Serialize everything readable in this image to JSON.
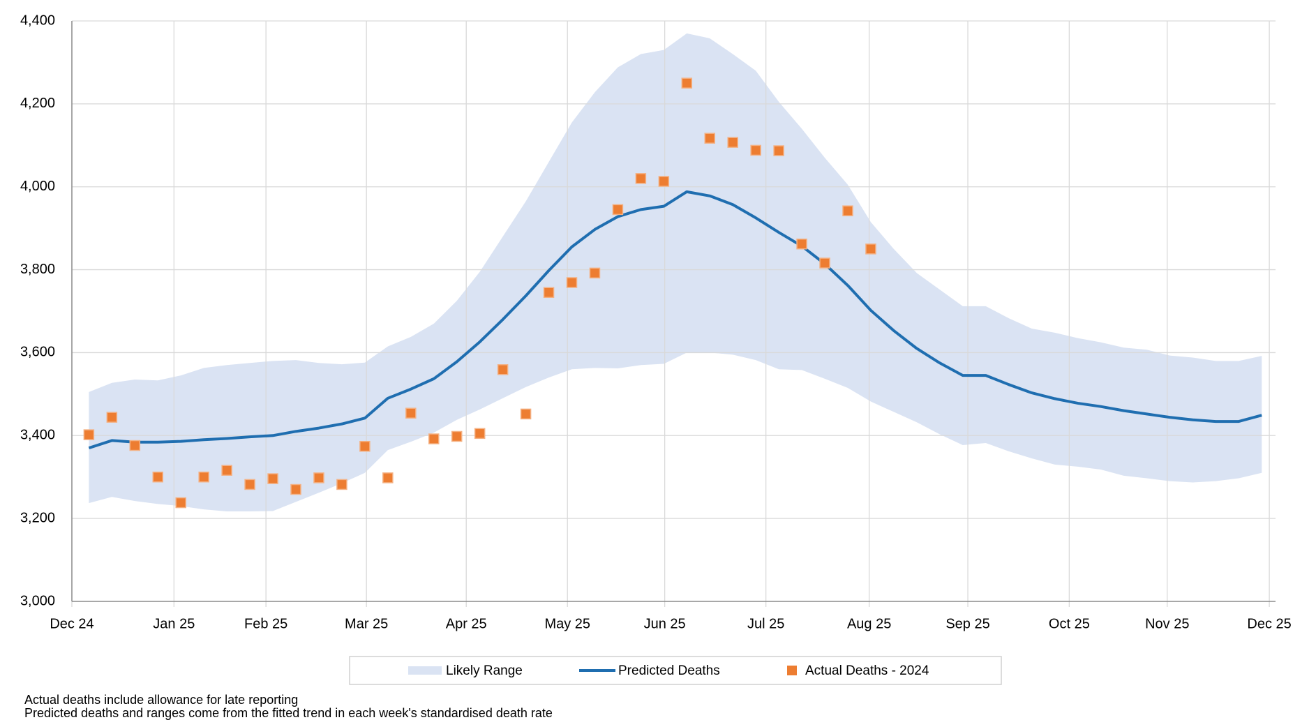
{
  "chart_data": {
    "type": "line",
    "x": [
      1,
      2,
      3,
      4,
      5,
      6,
      7,
      8,
      9,
      10,
      11,
      12,
      13,
      14,
      15,
      16,
      17,
      18,
      19,
      20,
      21,
      22,
      23,
      24,
      25,
      26,
      27,
      28,
      29,
      30,
      31,
      32,
      33,
      34,
      35,
      36,
      37,
      38,
      39,
      40,
      41,
      42,
      43,
      44,
      45,
      46,
      47,
      48,
      49,
      50,
      51,
      52
    ],
    "xlim": [
      0.26,
      52.6
    ],
    "xticks": [
      {
        "value": 0.26,
        "label": "Dec 24"
      },
      {
        "value": 4.7,
        "label": "Jan 25"
      },
      {
        "value": 8.7,
        "label": "Feb 25"
      },
      {
        "value": 13.07,
        "label": "Mar 25"
      },
      {
        "value": 17.41,
        "label": "Apr 25"
      },
      {
        "value": 21.81,
        "label": "May 25"
      },
      {
        "value": 26.04,
        "label": "Jun 25"
      },
      {
        "value": 30.44,
        "label": "Jul 25"
      },
      {
        "value": 34.93,
        "label": "Aug 25"
      },
      {
        "value": 39.22,
        "label": "Sep 25"
      },
      {
        "value": 43.63,
        "label": "Oct 25"
      },
      {
        "value": 47.89,
        "label": "Nov 25"
      },
      {
        "value": 52.33,
        "label": "Dec 25"
      }
    ],
    "ylim": [
      3000,
      4400
    ],
    "yticks": [
      {
        "value": 3000,
        "label": "3,000"
      },
      {
        "value": 3200,
        "label": "3,200"
      },
      {
        "value": 3400,
        "label": "3,400"
      },
      {
        "value": 3600,
        "label": "3,600"
      },
      {
        "value": 3800,
        "label": "3,800"
      },
      {
        "value": 4000,
        "label": "4,000"
      },
      {
        "value": 4200,
        "label": "4,200"
      },
      {
        "value": 4400,
        "label": "4,400"
      }
    ],
    "grid": true,
    "legend": "bottom",
    "series": [
      {
        "name": "Likely Range",
        "color": "#dae3f3",
        "low": [
          3237,
          3252,
          3242,
          3235,
          3230,
          3222,
          3217,
          3217,
          3218,
          3240,
          3262,
          3285,
          3310,
          3365,
          3385,
          3407,
          3438,
          3463,
          3490,
          3517,
          3540,
          3560,
          3563,
          3562,
          3570,
          3573,
          3600,
          3600,
          3595,
          3582,
          3560,
          3558,
          3537,
          3515,
          3482,
          3457,
          3432,
          3403,
          3377,
          3382,
          3362,
          3345,
          3330,
          3325,
          3318,
          3303,
          3297,
          3290,
          3287,
          3290,
          3297,
          3310
        ],
        "high": [
          3505,
          3527,
          3535,
          3533,
          3545,
          3563,
          3570,
          3575,
          3580,
          3582,
          3575,
          3572,
          3576,
          3615,
          3638,
          3670,
          3725,
          3795,
          3880,
          3965,
          4060,
          4155,
          4228,
          4288,
          4320,
          4330,
          4370,
          4358,
          4320,
          4280,
          4205,
          4140,
          4070,
          4005,
          3915,
          3850,
          3792,
          3752,
          3712,
          3712,
          3683,
          3658,
          3648,
          3635,
          3625,
          3612,
          3607,
          3593,
          3588,
          3580,
          3580,
          3592
        ]
      },
      {
        "name": "Predicted Deaths",
        "color": "#1f6eb0",
        "values": [
          3370,
          3388,
          3384,
          3384,
          3386,
          3390,
          3393,
          3397,
          3400,
          3410,
          3418,
          3428,
          3442,
          3490,
          3512,
          3537,
          3578,
          3626,
          3680,
          3737,
          3798,
          3855,
          3897,
          3928,
          3945,
          3953,
          3988,
          3978,
          3957,
          3925,
          3890,
          3857,
          3814,
          3762,
          3702,
          3653,
          3610,
          3575,
          3545,
          3545,
          3523,
          3503,
          3489,
          3478,
          3470,
          3460,
          3452,
          3444,
          3438,
          3434,
          3434,
          3449
        ]
      },
      {
        "name": "Actual Deaths - 2024",
        "color": "#ed7d31",
        "x": [
          1,
          2,
          3,
          4,
          5,
          6,
          7,
          8,
          9,
          10,
          11,
          12,
          13,
          14,
          15,
          16,
          17,
          18,
          19,
          20,
          21,
          22,
          23,
          24,
          25,
          26,
          27,
          28,
          29,
          30,
          31,
          32,
          33,
          34,
          35
        ],
        "values": [
          3402,
          3444,
          3376,
          3300,
          3238,
          3300,
          3316,
          3282,
          3296,
          3270,
          3298,
          3282,
          3374,
          3298,
          3454,
          3392,
          3398,
          3405,
          3559,
          3452,
          3745,
          3769,
          3792,
          3945,
          4020,
          4013,
          4250,
          4117,
          4107,
          4088,
          4087,
          3862,
          3816,
          3942,
          3850
        ]
      }
    ],
    "notes": [
      "Actual deaths include allowance for late reporting",
      "Predicted deaths and ranges come from the fitted trend in each week's standardised death rate"
    ]
  }
}
